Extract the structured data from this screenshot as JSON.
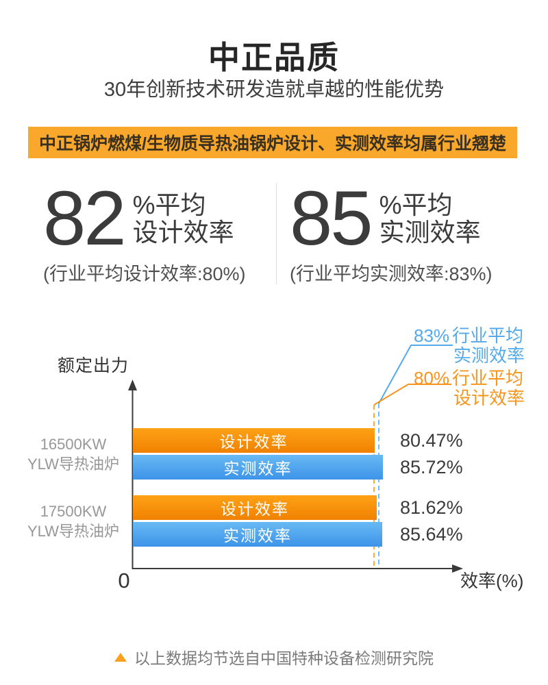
{
  "header": {
    "title": "中正品质",
    "subtitle": "30年创新技术研发造就卓越的性能优势"
  },
  "banner": {
    "text": "中正锅炉燃煤/生物质导热油锅炉设计、实测效率均属行业翘楚",
    "bg_color": "#f9a82b"
  },
  "stats": [
    {
      "value": "82",
      "unit": "%平均",
      "label": "设计效率",
      "caption": "(行业平均设计效率:80%)"
    },
    {
      "value": "85",
      "unit": "%平均",
      "label": "实测效率",
      "caption": "(行业平均实测效率:83%)"
    }
  ],
  "chart_data": {
    "type": "bar",
    "orientation": "horizontal",
    "ylabel": "额定出力",
    "xlabel": "效率(%)",
    "origin_label": "0",
    "categories": [
      "16500KW YLW导热油炉",
      "17500KW YLW导热油炉"
    ],
    "series": [
      {
        "name": "设计效率",
        "color": "#f78e04",
        "values": [
          80.47,
          81.62
        ]
      },
      {
        "name": "实测效率",
        "color": "#4fa0ea",
        "values": [
          85.72,
          85.64
        ]
      }
    ],
    "reference_lines": [
      {
        "value": 83,
        "pct_label": "83%",
        "line1": "行业平均",
        "line2": "实测效率",
        "color": "#54a9ea"
      },
      {
        "value": 80,
        "pct_label": "80%",
        "line1": "行业平均",
        "line2": "设计效率",
        "color": "#f7941e"
      }
    ],
    "legend_position": "none",
    "grid": false
  },
  "footer": {
    "note": "以上数据均节选自中国特种设备检测研究院"
  }
}
